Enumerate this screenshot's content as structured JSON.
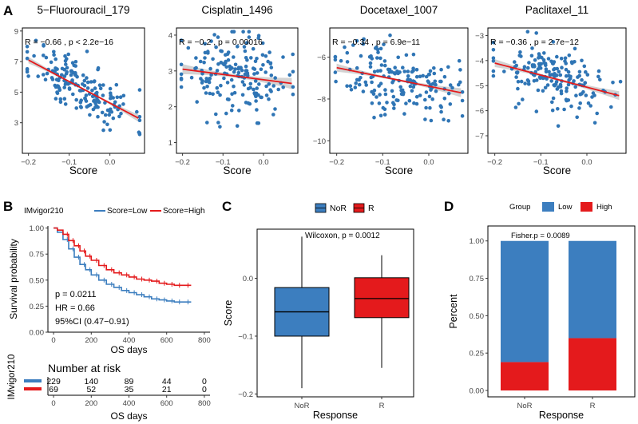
{
  "panel_labels": {
    "a": "A",
    "b": "B",
    "c": "C",
    "d": "D"
  },
  "colors": {
    "point": "#2f75b5",
    "fit": "#e41a1c",
    "ci": "#c8c8c8",
    "low": "#3c7ebf",
    "high": "#e41a1c",
    "nor_box": "#3c7ebf",
    "r_box": "#e41a1c"
  },
  "chart_data": [
    {
      "id": "a1",
      "type": "scatter",
      "title": "5−Fluorouracil_179",
      "annotation": "R = −0.66 , p < 2.2e−16",
      "xlabel": "Score",
      "ylabel": "",
      "xlim": [
        -0.215,
        0.085
      ],
      "ylim": [
        1.0,
        9.2
      ],
      "xticks": [
        -0.2,
        -0.1,
        0.0
      ],
      "xtick_labels": [
        "−0.2",
        "−0.1",
        "0.0"
      ],
      "yticks": [
        3,
        5,
        7,
        9
      ],
      "ytick_labels": [
        "3",
        "5",
        "7",
        "9"
      ],
      "fit": {
        "x0": -0.2,
        "y0": 7.1,
        "x1": 0.07,
        "y1": 3.3
      },
      "n_points": 180,
      "center_x": -0.07,
      "spread_x": 0.065,
      "noise": 0.95,
      "seed": 11
    },
    {
      "id": "a2",
      "type": "scatter",
      "title": "Cisplatin_1496",
      "annotation": "R = −0.2 , p = 0.00016",
      "xlabel": "Score",
      "ylabel": "",
      "xlim": [
        -0.215,
        0.085
      ],
      "ylim": [
        0.7,
        4.2
      ],
      "xticks": [
        -0.2,
        -0.1,
        0.0
      ],
      "xtick_labels": [
        "−0.2",
        "−0.1",
        "0.0"
      ],
      "yticks": [
        1,
        2,
        3,
        4
      ],
      "ytick_labels": [
        "1",
        "2",
        "3",
        "4"
      ],
      "fit": {
        "x0": -0.2,
        "y0": 3.05,
        "x1": 0.07,
        "y1": 2.65
      },
      "n_points": 180,
      "center_x": -0.07,
      "spread_x": 0.065,
      "noise": 0.55,
      "seed": 23
    },
    {
      "id": "a3",
      "type": "scatter",
      "title": "Docetaxel_1007",
      "annotation": "R = −0.34 , p = 6.9e−11",
      "xlabel": "Score",
      "ylabel": "",
      "xlim": [
        -0.215,
        0.085
      ],
      "ylim": [
        -10.6,
        -4.6
      ],
      "xticks": [
        -0.2,
        -0.1,
        0.0
      ],
      "xtick_labels": [
        "−0.2",
        "−0.1",
        "0.0"
      ],
      "yticks": [
        -10,
        -8,
        -6
      ],
      "ytick_labels": [
        "−10",
        "−8",
        "−6"
      ],
      "fit": {
        "x0": -0.2,
        "y0": -6.5,
        "x1": 0.07,
        "y1": -7.7
      },
      "n_points": 180,
      "center_x": -0.07,
      "spread_x": 0.065,
      "noise": 0.85,
      "seed": 37
    },
    {
      "id": "a4",
      "type": "scatter",
      "title": "Paclitaxel_11",
      "annotation": "R = −0.36 , p = 2.7e−12",
      "xlabel": "Score",
      "ylabel": "",
      "xlim": [
        -0.215,
        0.085
      ],
      "ylim": [
        -7.7,
        -2.7
      ],
      "xticks": [
        -0.2,
        -0.1,
        0.0
      ],
      "xtick_labels": [
        "−0.2",
        "−0.1",
        "0.0"
      ],
      "yticks": [
        -7,
        -6,
        -5,
        -4,
        -3
      ],
      "ytick_labels": [
        "−7",
        "−6",
        "−5",
        "−4",
        "−3"
      ],
      "fit": {
        "x0": -0.2,
        "y0": -4.1,
        "x1": 0.07,
        "y1": -5.4
      },
      "n_points": 180,
      "center_x": -0.07,
      "spread_x": 0.065,
      "noise": 0.65,
      "seed": 53
    },
    {
      "id": "b",
      "type": "line",
      "title": "",
      "legend_title": "IMvigor210",
      "legend": [
        "Score=Low",
        "Score=High"
      ],
      "xlabel": "OS days",
      "ylabel": "Survival probability",
      "xlim": [
        -30,
        830
      ],
      "ylim": [
        0,
        1.02
      ],
      "xticks": [
        0,
        200,
        400,
        600,
        800
      ],
      "xtick_labels": [
        "0",
        "200",
        "400",
        "600",
        "800"
      ],
      "yticks": [
        0,
        0.25,
        0.5,
        0.75,
        1.0
      ],
      "ytick_labels": [
        "0.00",
        "0.25",
        "0.50",
        "0.75",
        "1.00"
      ],
      "stats": [
        "p = 0.0211",
        "HR = 0.66",
        "95%CI (0.47−0.91)"
      ],
      "series": [
        {
          "name": "Score=Low",
          "x": [
            0,
            20,
            50,
            80,
            110,
            140,
            170,
            200,
            240,
            280,
            320,
            360,
            400,
            440,
            480,
            520,
            560,
            600,
            640,
            680,
            730
          ],
          "values": [
            1.0,
            0.96,
            0.89,
            0.8,
            0.72,
            0.65,
            0.6,
            0.55,
            0.5,
            0.46,
            0.43,
            0.4,
            0.38,
            0.36,
            0.34,
            0.32,
            0.31,
            0.3,
            0.29,
            0.29,
            0.29
          ]
        },
        {
          "name": "Score=High",
          "x": [
            0,
            20,
            50,
            80,
            110,
            140,
            170,
            200,
            240,
            280,
            320,
            360,
            400,
            440,
            480,
            520,
            560,
            600,
            640,
            680,
            730
          ],
          "values": [
            1.0,
            0.98,
            0.94,
            0.88,
            0.83,
            0.78,
            0.73,
            0.69,
            0.64,
            0.6,
            0.57,
            0.55,
            0.53,
            0.51,
            0.5,
            0.49,
            0.47,
            0.46,
            0.45,
            0.45,
            0.45
          ]
        }
      ],
      "risk_table": {
        "title": "Number at risk",
        "group_label": "IMvigor210",
        "times": [
          0,
          200,
          400,
          600,
          800
        ],
        "rows": [
          {
            "name": "Score=Low",
            "values": [
              "229",
              "140",
              "89",
              "44",
              "0"
            ]
          },
          {
            "name": "Score=High",
            "values": [
              "69",
              "52",
              "35",
              "21",
              "0"
            ]
          }
        ],
        "xlabel": "OS days"
      }
    },
    {
      "id": "c",
      "type": "box",
      "title": "",
      "legend": [
        "NoR",
        "R"
      ],
      "annotation": "Wilcoxon, p = 0.0012",
      "xlabel": "Response",
      "ylabel": "Score",
      "categories": [
        "NoR",
        "R"
      ],
      "ylim": [
        -0.205,
        0.085
      ],
      "yticks": [
        -0.2,
        -0.1,
        0.0
      ],
      "ytick_labels": [
        "−0.2",
        "−0.1",
        "0.0"
      ],
      "boxes": [
        {
          "name": "NoR",
          "min": -0.19,
          "q1": -0.1,
          "median": -0.058,
          "q3": -0.016,
          "max": 0.072
        },
        {
          "name": "R",
          "min": -0.155,
          "q1": -0.068,
          "median": -0.035,
          "q3": 0.001,
          "max": 0.04
        }
      ]
    },
    {
      "id": "d",
      "type": "bar",
      "title": "",
      "legend_title": "Group",
      "legend": [
        "Low",
        "High"
      ],
      "annotation": "Fisher.p = 0.0089",
      "xlabel": "Response",
      "ylabel": "Percent",
      "categories": [
        "NoR",
        "R"
      ],
      "ylim": [
        0,
        1.1
      ],
      "yticks": [
        0,
        0.25,
        0.5,
        0.75,
        1.0
      ],
      "ytick_labels": [
        "0.00",
        "0.25",
        "0.50",
        "0.75",
        "1.00"
      ],
      "series": [
        {
          "name": "High",
          "values": [
            0.19,
            0.35
          ]
        },
        {
          "name": "Low",
          "values": [
            0.81,
            0.65
          ]
        }
      ]
    }
  ]
}
